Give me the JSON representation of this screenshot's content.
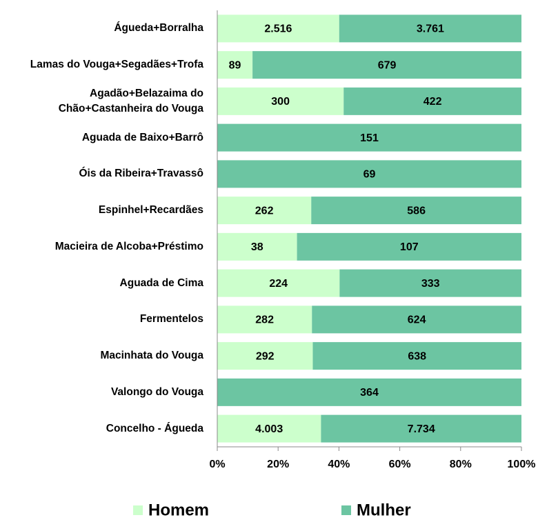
{
  "chart_data": {
    "type": "bar",
    "orientation": "horizontal",
    "stacking": "percent",
    "categories": [
      "Águeda+Borralha",
      "Lamas do Vouga+Segadães+Trofa",
      "Agadão+Belazaima do Chão+Castanheira do Vouga",
      "Aguada de Baixo+Barrô",
      "Óis da Ribeira+Travassô",
      "Espinhel+Recardães",
      "Macieira de Alcoba+Préstimo",
      "Aguada de Cima",
      "Fermentelos",
      "Macinhata do Vouga",
      "Valongo do Vouga",
      "Concelho - Águeda"
    ],
    "series": [
      {
        "name": "Homem",
        "color": "#ccffcc",
        "values": [
          2516,
          89,
          300,
          null,
          null,
          262,
          38,
          224,
          282,
          292,
          null,
          4003
        ],
        "value_labels": [
          "2.516",
          "89",
          "300",
          null,
          null,
          "262",
          "38",
          "224",
          "282",
          "292",
          null,
          "4.003"
        ]
      },
      {
        "name": "Mulher",
        "color": "#6cc5a2",
        "values": [
          3761,
          679,
          422,
          151,
          69,
          586,
          107,
          333,
          624,
          638,
          364,
          7734
        ],
        "value_labels": [
          "3.761",
          "679",
          "422",
          "151",
          "69",
          "586",
          "107",
          "333",
          "624",
          "638",
          "364",
          "7.734"
        ]
      }
    ],
    "xlim": [
      0,
      100
    ],
    "xticks": [
      {
        "value": 0,
        "label": "0%"
      },
      {
        "value": 20,
        "label": "20%"
      },
      {
        "value": 40,
        "label": "40%"
      },
      {
        "value": 60,
        "label": "60%"
      },
      {
        "value": 80,
        "label": "80%"
      },
      {
        "value": 100,
        "label": "100%"
      }
    ],
    "legend": "bottom"
  }
}
